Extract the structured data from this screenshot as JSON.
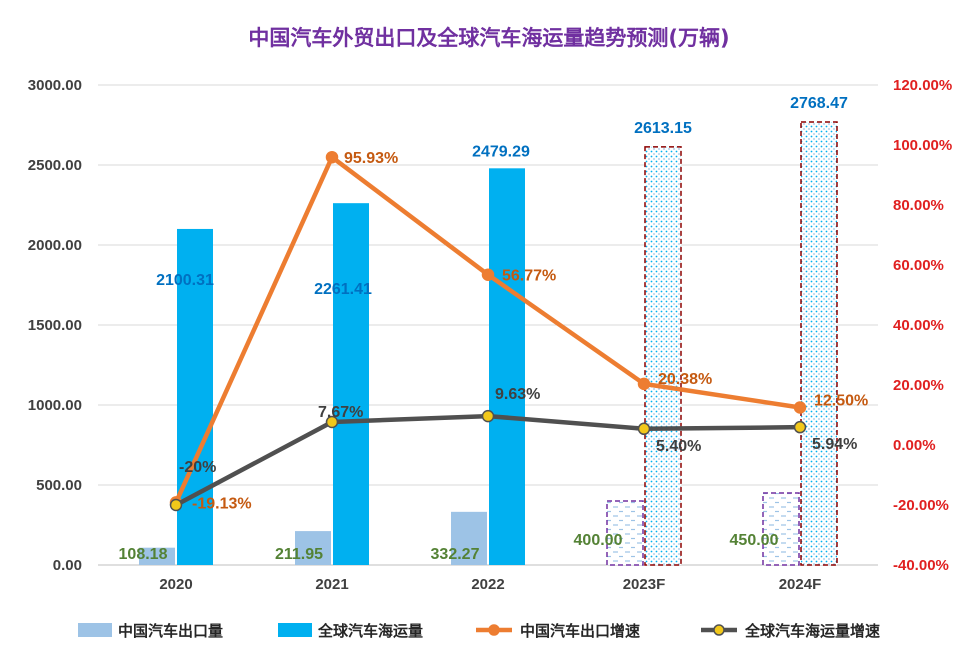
{
  "colors": {
    "export_bar": "#9DC3E6",
    "shipping_bar": "#00B0F0",
    "export_growth_line": "#ED7D31",
    "shipping_growth_line": "#505050",
    "shipping_growth_marker": "#F2C81A",
    "title": "#7030A0",
    "forecast_border_shipping": "#8B0000",
    "forecast_border_export": "#7030A0",
    "export_label": "#548235",
    "shipping_label": "#0070C0",
    "export_growth_label": "#C55A11",
    "shipping_growth_label": "#404040",
    "left_axis": "#404040",
    "right_axis": "#E02020",
    "grid": "#D9D9D9"
  },
  "chart_data": {
    "type": "bar",
    "title": "中国汽车外贸出口及全球汽车海运量趋势预测(万辆)",
    "categories": [
      "2020",
      "2021",
      "2022",
      "2023F",
      "2024F"
    ],
    "forecast_flags": [
      false,
      false,
      false,
      true,
      true
    ],
    "left_axis": {
      "ylim": [
        0,
        3000
      ],
      "ticks": [
        "0.00",
        "500.00",
        "1000.00",
        "1500.00",
        "2000.00",
        "2500.00",
        "3000.00"
      ]
    },
    "right_axis": {
      "ylim": [
        -40,
        120
      ],
      "ticks": [
        "-40.00%",
        "-20.00%",
        "0.00%",
        "20.00%",
        "40.00%",
        "60.00%",
        "80.00%",
        "100.00%",
        "120.00%"
      ]
    },
    "grid": true,
    "legend_position": "bottom",
    "series": [
      {
        "name": "中国汽车出口量",
        "type": "bar",
        "axis": "left",
        "values": [
          108.18,
          211.95,
          332.27,
          400.0,
          450.0
        ],
        "labels": [
          "108.18",
          "211.95",
          "332.27",
          "400.00",
          "450.00"
        ]
      },
      {
        "name": "全球汽车海运量",
        "type": "bar",
        "axis": "left",
        "values": [
          2100.31,
          2261.41,
          2479.29,
          2613.15,
          2768.47
        ],
        "labels": [
          "2100.31",
          "2261.41",
          "2479.29",
          "2613.15",
          "2768.47"
        ]
      },
      {
        "name": "中国汽车出口增速",
        "type": "line",
        "axis": "right",
        "values": [
          -19.13,
          95.93,
          56.77,
          20.38,
          12.5
        ],
        "labels": [
          "-19.13%",
          "95.93%",
          "56.77%",
          "20.38%",
          "12.50%"
        ]
      },
      {
        "name": "全球汽车海运量增速",
        "type": "line",
        "axis": "right",
        "values": [
          -20,
          7.67,
          9.63,
          5.4,
          5.94
        ],
        "labels": [
          "-20%",
          "7.67%",
          "9.63%",
          "5.40%",
          "5.94%"
        ]
      }
    ]
  }
}
